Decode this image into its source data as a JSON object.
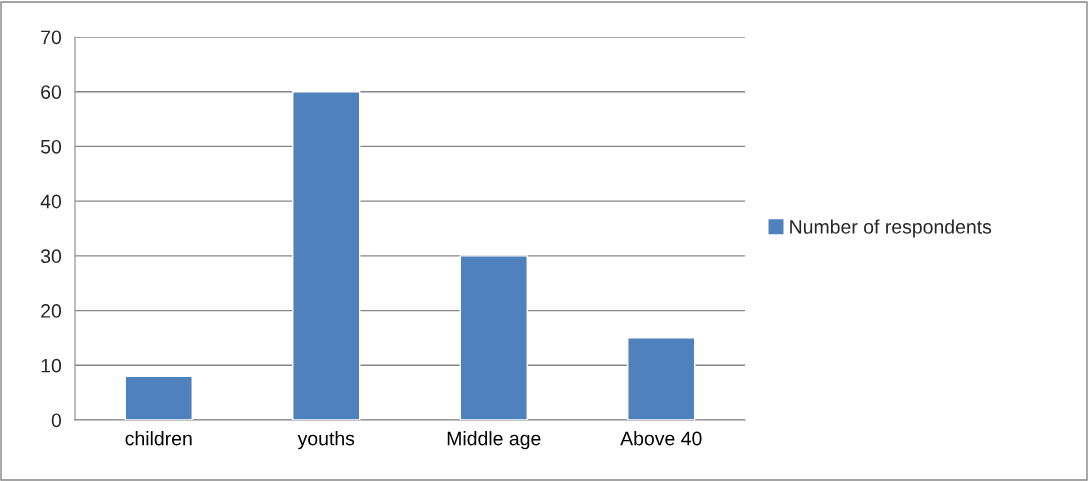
{
  "chart_data": {
    "type": "bar",
    "categories": [
      "children",
      "youths",
      "Middle age",
      "Above 40"
    ],
    "series": [
      {
        "name": "Number of respondents",
        "color": "#4f81bd",
        "values": [
          8,
          60,
          30,
          15
        ]
      }
    ],
    "ylim": [
      0,
      70
    ],
    "yticks": [
      0,
      10,
      20,
      30,
      40,
      50,
      60,
      70
    ],
    "grid": "y",
    "legend": "right"
  }
}
